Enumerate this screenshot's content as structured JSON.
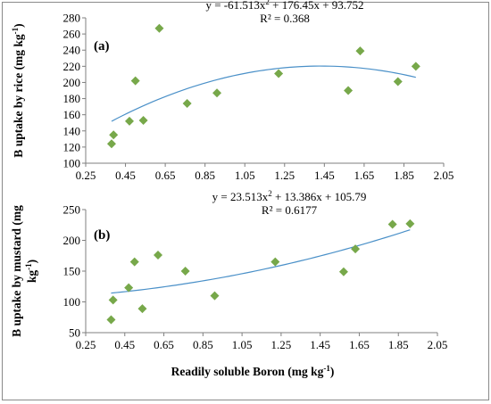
{
  "chart_data": [
    {
      "type": "scatter",
      "panel_label": "(a)",
      "ylabel_html": [
        "B uptake by rice (mg kg",
        "-1",
        ")"
      ],
      "xlabel": "",
      "xlim": [
        0.25,
        2.05
      ],
      "ylim": [
        100,
        280
      ],
      "xticks": [
        "0.25",
        "0.45",
        "0.65",
        "0.85",
        "1.05",
        "1.25",
        "1.45",
        "1.65",
        "1.85",
        "2.05"
      ],
      "yticks": [
        "100",
        "120",
        "140",
        "160",
        "180",
        "200",
        "220",
        "240",
        "260",
        "280"
      ],
      "x": [
        0.38,
        0.39,
        0.47,
        0.5,
        0.54,
        0.62,
        0.76,
        0.91,
        1.22,
        1.57,
        1.63,
        1.82,
        1.91
      ],
      "y": [
        124,
        135,
        152,
        202,
        153,
        267,
        174,
        187,
        211,
        190,
        239,
        201,
        220
      ],
      "trendline": {
        "type": "polynomial",
        "coef": [
          -61.513,
          176.45,
          93.752
        ],
        "range": [
          0.38,
          1.91
        ]
      },
      "equation": "y = -61.513x",
      "equation_rest": " + 176.45x + 93.752",
      "r2": "R² = 0.368",
      "marker_color": "#77a84a",
      "line_color": "#4a90c8",
      "grid": false
    },
    {
      "type": "scatter",
      "panel_label": "(b)",
      "ylabel_line1": "B uptake by mustard (mg",
      "ylabel_line2": [
        "kg",
        "-1",
        ")"
      ],
      "xlabel": "Readily  soluble Boron (mg kg",
      "xlabel_sup": "-1",
      "xlabel_end": ")",
      "xlim": [
        0.25,
        2.05
      ],
      "ylim": [
        50,
        250
      ],
      "xticks": [
        "0.25",
        "0.45",
        "0.65",
        "0.85",
        "1.05",
        "1.25",
        "1.45",
        "1.65",
        "1.85",
        "2.05"
      ],
      "yticks": [
        "50",
        "100",
        "150",
        "200",
        "250"
      ],
      "x": [
        0.38,
        0.39,
        0.47,
        0.5,
        0.54,
        0.62,
        0.76,
        0.91,
        1.22,
        1.57,
        1.63,
        1.82,
        1.91
      ],
      "y": [
        71,
        103,
        123,
        165,
        89,
        176,
        150,
        110,
        165,
        149,
        186,
        226,
        227
      ],
      "trendline": {
        "type": "polynomial",
        "coef": [
          23.513,
          13.386,
          105.79
        ],
        "range": [
          0.38,
          1.91
        ]
      },
      "equation": "y = 23.513x",
      "equation_rest": " + 13.386x + 105.79",
      "r2": "R² = 0.6177",
      "marker_color": "#77a84a",
      "line_color": "#4a90c8",
      "grid": false
    }
  ]
}
